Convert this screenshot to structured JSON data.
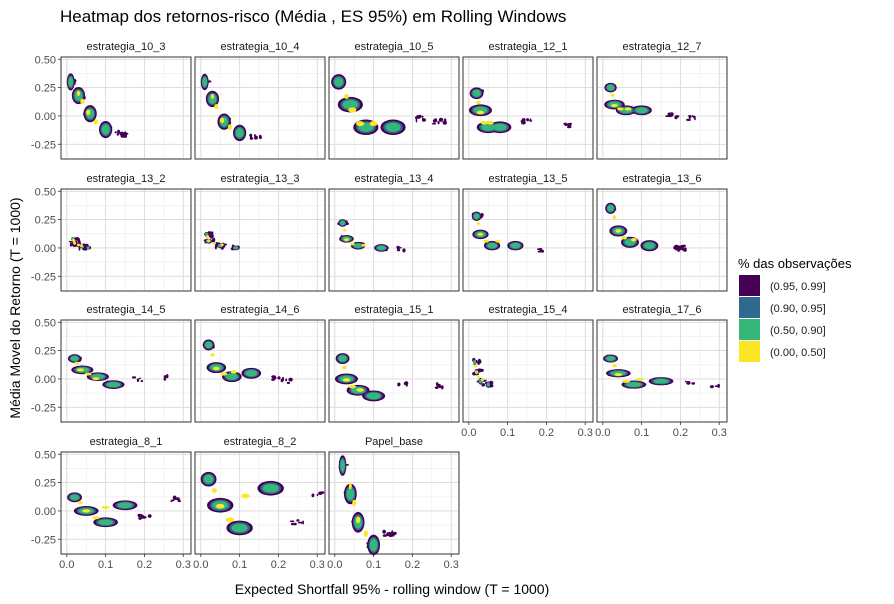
{
  "chart_data": {
    "type": "heatmap",
    "title": "Heatmap dos retornos-risco (Média , ES 95%) em Rolling Windows",
    "xlabel": "Expected Shortfall 95% - rolling window (T = 1000)",
    "ylabel": "Média Movel do Retorno (T = 1000)",
    "xlim": [
      -0.015,
      0.32
    ],
    "ylim": [
      -0.38,
      0.52
    ],
    "x_ticks": [
      "0.0",
      "0.1",
      "0.2",
      "0.3"
    ],
    "x_tick_values": [
      0.0,
      0.1,
      0.2,
      0.3
    ],
    "y_ticks": [
      "0.50",
      "0.25",
      "0.00",
      "-0.25"
    ],
    "y_tick_values": [
      0.5,
      0.25,
      0.0,
      -0.25
    ],
    "grid": true,
    "legend_position": "right",
    "legend": {
      "title": "% das observações",
      "entries": [
        {
          "label": "(0.95, 0.99]",
          "color": "#440154"
        },
        {
          "label": "(0.90, 0.95]",
          "color": "#31688e"
        },
        {
          "label": "(0.50, 0.90]",
          "color": "#35b779"
        },
        {
          "label": "(0.00, 0.50]",
          "color": "#fde725"
        }
      ]
    },
    "panels": [
      {
        "name": "estrategia_10_3",
        "x_range": [
          0.005,
          0.16
        ],
        "y_range": [
          -0.26,
          0.37
        ],
        "center": [
          0.05,
          0.05
        ],
        "blobs": [
          [
            0.01,
            0.3
          ],
          [
            0.03,
            0.18
          ],
          [
            0.06,
            0.02
          ],
          [
            0.1,
            -0.12
          ],
          [
            0.14,
            -0.16
          ]
        ]
      },
      {
        "name": "estrategia_10_4",
        "x_range": [
          0.005,
          0.16
        ],
        "y_range": [
          -0.25,
          0.35
        ],
        "center": [
          0.05,
          -0.02
        ],
        "blobs": [
          [
            0.01,
            0.3
          ],
          [
            0.03,
            0.15
          ],
          [
            0.06,
            -0.05
          ],
          [
            0.1,
            -0.15
          ],
          [
            0.14,
            -0.18
          ]
        ]
      },
      {
        "name": "estrategia_10_5",
        "x_range": [
          0.005,
          0.3
        ],
        "y_range": [
          -0.22,
          0.35
        ],
        "center": [
          0.05,
          -0.02
        ],
        "blobs": [
          [
            0.01,
            0.3
          ],
          [
            0.04,
            0.1
          ],
          [
            0.08,
            -0.1
          ],
          [
            0.15,
            -0.1
          ],
          [
            0.22,
            -0.02
          ],
          [
            0.27,
            -0.05
          ]
        ]
      },
      {
        "name": "estrategia_12_1",
        "x_range": [
          0.01,
          0.28
        ],
        "y_range": [
          -0.18,
          0.25
        ],
        "center": [
          0.03,
          0.0
        ],
        "blobs": [
          [
            0.02,
            0.2
          ],
          [
            0.03,
            0.05
          ],
          [
            0.05,
            -0.1
          ],
          [
            0.08,
            -0.1
          ],
          [
            0.15,
            -0.05
          ],
          [
            0.25,
            -0.08
          ]
        ]
      },
      {
        "name": "estrategia_12_7",
        "x_range": [
          0.01,
          0.25
        ],
        "y_range": [
          -0.08,
          0.28
        ],
        "center": [
          0.03,
          0.08
        ],
        "blobs": [
          [
            0.02,
            0.25
          ],
          [
            0.03,
            0.1
          ],
          [
            0.06,
            0.05
          ],
          [
            0.1,
            0.05
          ],
          [
            0.18,
            0.0
          ],
          [
            0.23,
            -0.02
          ]
        ]
      },
      {
        "name": "estrategia_13_2",
        "x_range": [
          0.01,
          0.06
        ],
        "y_range": [
          -0.02,
          0.1
        ],
        "center": [
          0.02,
          0.05
        ],
        "blobs": [
          [
            0.015,
            0.08
          ],
          [
            0.02,
            0.04
          ],
          [
            0.04,
            0.01
          ],
          [
            0.055,
            0.0
          ]
        ]
      },
      {
        "name": "estrategia_13_3",
        "x_range": [
          0.01,
          0.1
        ],
        "y_range": [
          -0.02,
          0.15
        ],
        "center": [
          0.02,
          0.07
        ],
        "blobs": [
          [
            0.015,
            0.12
          ],
          [
            0.02,
            0.06
          ],
          [
            0.05,
            0.02
          ],
          [
            0.09,
            0.0
          ]
        ]
      },
      {
        "name": "estrategia_13_4",
        "x_range": [
          0.01,
          0.18
        ],
        "y_range": [
          -0.03,
          0.25
        ],
        "center": [
          0.03,
          0.06
        ],
        "blobs": [
          [
            0.02,
            0.22
          ],
          [
            0.03,
            0.08
          ],
          [
            0.06,
            0.02
          ],
          [
            0.12,
            0.0
          ],
          [
            0.17,
            -0.01
          ]
        ]
      },
      {
        "name": "estrategia_13_5",
        "x_range": [
          0.01,
          0.2
        ],
        "y_range": [
          -0.05,
          0.3
        ],
        "center": [
          0.03,
          0.12
        ],
        "blobs": [
          [
            0.02,
            0.28
          ],
          [
            0.03,
            0.12
          ],
          [
            0.06,
            0.02
          ],
          [
            0.12,
            0.02
          ],
          [
            0.19,
            -0.02
          ]
        ]
      },
      {
        "name": "estrategia_13_6",
        "x_range": [
          0.01,
          0.22
        ],
        "y_range": [
          -0.03,
          0.38
        ],
        "center": [
          0.04,
          0.15
        ],
        "blobs": [
          [
            0.02,
            0.35
          ],
          [
            0.04,
            0.15
          ],
          [
            0.07,
            0.05
          ],
          [
            0.12,
            0.02
          ],
          [
            0.2,
            0.0
          ]
        ]
      },
      {
        "name": "estrategia_14_5",
        "x_range": [
          0.01,
          0.27
        ],
        "y_range": [
          -0.1,
          0.22
        ],
        "center": [
          0.03,
          0.08
        ],
        "blobs": [
          [
            0.02,
            0.18
          ],
          [
            0.04,
            0.08
          ],
          [
            0.08,
            0.02
          ],
          [
            0.12,
            -0.05
          ],
          [
            0.18,
            0.0
          ],
          [
            0.26,
            0.01
          ]
        ]
      },
      {
        "name": "estrategia_14_6",
        "x_range": [
          0.01,
          0.24
        ],
        "y_range": [
          -0.05,
          0.35
        ],
        "center": [
          0.04,
          0.08
        ],
        "blobs": [
          [
            0.02,
            0.3
          ],
          [
            0.04,
            0.1
          ],
          [
            0.08,
            0.02
          ],
          [
            0.13,
            0.05
          ],
          [
            0.2,
            0.0
          ],
          [
            0.23,
            -0.02
          ]
        ]
      },
      {
        "name": "estrategia_15_1",
        "x_range": [
          0.01,
          0.28
        ],
        "y_range": [
          -0.18,
          0.22
        ],
        "center": [
          0.03,
          -0.02
        ],
        "blobs": [
          [
            0.02,
            0.18
          ],
          [
            0.03,
            0.0
          ],
          [
            0.06,
            -0.1
          ],
          [
            0.1,
            -0.15
          ],
          [
            0.18,
            -0.05
          ],
          [
            0.27,
            -0.06
          ]
        ]
      },
      {
        "name": "estrategia_15_4",
        "x_range": [
          0.01,
          0.06
        ],
        "y_range": [
          -0.06,
          0.18
        ],
        "center": [
          0.02,
          0.06
        ],
        "blobs": [
          [
            0.015,
            0.15
          ],
          [
            0.02,
            0.06
          ],
          [
            0.03,
            -0.02
          ],
          [
            0.05,
            -0.05
          ]
        ]
      },
      {
        "name": "estrategia_17_6",
        "x_range": [
          0.01,
          0.3
        ],
        "y_range": [
          -0.1,
          0.2
        ],
        "center": [
          0.04,
          0.02
        ],
        "blobs": [
          [
            0.02,
            0.18
          ],
          [
            0.04,
            0.05
          ],
          [
            0.08,
            -0.05
          ],
          [
            0.15,
            -0.02
          ],
          [
            0.22,
            -0.03
          ],
          [
            0.29,
            -0.05
          ]
        ]
      },
      {
        "name": "estrategia_8_1",
        "x_range": [
          0.01,
          0.3
        ],
        "y_range": [
          -0.19,
          0.17
        ],
        "center": [
          0.05,
          0.0
        ],
        "blobs": [
          [
            0.02,
            0.12
          ],
          [
            0.05,
            0.0
          ],
          [
            0.1,
            -0.1
          ],
          [
            0.15,
            0.05
          ],
          [
            0.2,
            -0.05
          ],
          [
            0.28,
            0.1
          ]
        ]
      },
      {
        "name": "estrategia_8_2",
        "x_range": [
          0.01,
          0.32
        ],
        "y_range": [
          -0.22,
          0.32
        ],
        "center": [
          0.05,
          0.03
        ],
        "blobs": [
          [
            0.02,
            0.28
          ],
          [
            0.05,
            0.05
          ],
          [
            0.1,
            -0.15
          ],
          [
            0.18,
            0.2
          ],
          [
            0.25,
            -0.1
          ],
          [
            0.3,
            0.15
          ]
        ]
      },
      {
        "name": "Papel_base",
        "x_range": [
          0.01,
          0.16
        ],
        "y_range": [
          -0.33,
          0.43
        ],
        "center": [
          0.06,
          -0.05
        ],
        "blobs": [
          [
            0.02,
            0.4
          ],
          [
            0.04,
            0.15
          ],
          [
            0.06,
            -0.1
          ],
          [
            0.1,
            -0.3
          ],
          [
            0.14,
            -0.2
          ]
        ]
      }
    ]
  }
}
